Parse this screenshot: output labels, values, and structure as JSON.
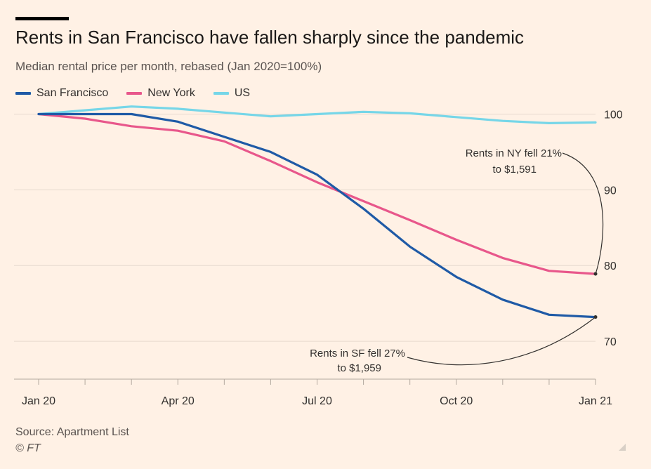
{
  "header": {
    "title": "Rents in San Francisco have fallen sharply since the pandemic",
    "subtitle": "Median rental price per month, rebased (Jan 2020=100%)"
  },
  "footer": {
    "source": "Source: Apartment List",
    "credit": "© FT"
  },
  "colors": {
    "background": "#fff1e5",
    "grid": "#e6d9ce",
    "axis": "#b3a99f",
    "annotation": "#33302e"
  },
  "chart_data": {
    "type": "line",
    "title": "Rents in San Francisco have fallen sharply since the pandemic",
    "subtitle": "Median rental price per month, rebased (Jan 2020=100%)",
    "x": [
      "Jan 2020",
      "Feb 2020",
      "Mar 2020",
      "Apr 2020",
      "May 2020",
      "Jun 2020",
      "Jul 2020",
      "Aug 2020",
      "Sep 2020",
      "Oct 2020",
      "Nov 2020",
      "Dec 2020",
      "Jan 2021"
    ],
    "xtick_labels": [
      {
        "index": 0,
        "label": "Jan 20"
      },
      {
        "index": 3,
        "label": "Apr 20"
      },
      {
        "index": 6,
        "label": "Jul 20"
      },
      {
        "index": 9,
        "label": "Oct 20"
      },
      {
        "index": 12,
        "label": "Jan 21"
      }
    ],
    "ylim": [
      65,
      101
    ],
    "yticks": [
      70,
      80,
      90,
      100
    ],
    "y_axis_side": "right",
    "grid": true,
    "legend_position": "top-left",
    "series": [
      {
        "name": "San Francisco",
        "color": "#1f5aa6",
        "values": [
          100,
          100,
          100,
          99,
          97,
          95,
          92,
          87.5,
          82.5,
          78.5,
          75.5,
          73.5,
          73.2
        ]
      },
      {
        "name": "New York",
        "color": "#e8578b",
        "values": [
          100,
          99.4,
          98.4,
          97.8,
          96.4,
          93.8,
          91,
          88.5,
          86,
          83.4,
          81,
          79.3,
          78.9
        ]
      },
      {
        "name": "US",
        "color": "#76d6e8",
        "values": [
          100,
          100.5,
          101,
          100.7,
          100.2,
          99.7,
          100,
          100.3,
          100.1,
          99.6,
          99.1,
          98.8,
          98.9
        ]
      }
    ],
    "annotations": [
      {
        "lines": [
          "Rents in NY fell 21%",
          "to $1,591"
        ],
        "series": "New York"
      },
      {
        "lines": [
          "Rents in SF fell 27%",
          "to $1,959"
        ],
        "series": "San Francisco"
      }
    ]
  }
}
